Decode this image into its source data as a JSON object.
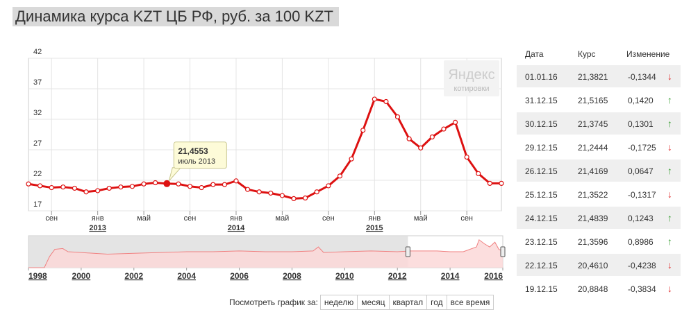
{
  "title": "Динамика курса KZT ЦБ РФ, руб. за 100 KZT",
  "watermark": {
    "line1": "Яндекс",
    "line2": "котировки"
  },
  "tooltip": {
    "value": "21,4553",
    "label": "июль 2013",
    "index": 12
  },
  "chart_data": {
    "type": "line",
    "title": "Динамика курса KZT ЦБ РФ, руб. за 100 KZT",
    "ylim": [
      17,
      42
    ],
    "yticks": [
      "42",
      "37",
      "32",
      "27",
      "22",
      "17"
    ],
    "ytick_values": [
      42,
      37,
      32,
      27,
      22,
      17
    ],
    "xlim": [
      0,
      41
    ],
    "x_month_labels": [
      {
        "x": 2,
        "label": "сен"
      },
      {
        "x": 6,
        "label": "янв"
      },
      {
        "x": 10,
        "label": "май"
      },
      {
        "x": 14,
        "label": "сен"
      },
      {
        "x": 18,
        "label": "янв"
      },
      {
        "x": 22,
        "label": "май"
      },
      {
        "x": 26,
        "label": "сен"
      },
      {
        "x": 30,
        "label": "янв"
      },
      {
        "x": 34,
        "label": "май"
      },
      {
        "x": 38,
        "label": "сен"
      }
    ],
    "x_year_labels": [
      {
        "x": 6,
        "label": "2013"
      },
      {
        "x": 18,
        "label": "2014"
      },
      {
        "x": 30,
        "label": "2015"
      }
    ],
    "values": [
      21.4,
      21.1,
      20.8,
      20.9,
      20.7,
      20.1,
      20.3,
      20.7,
      20.9,
      21.0,
      21.4,
      21.6,
      21.4553,
      21.4,
      21.0,
      20.8,
      21.3,
      21.3,
      21.9,
      20.5,
      20.1,
      19.9,
      19.5,
      19.0,
      19.1,
      20.1,
      21.1,
      22.7,
      25.5,
      30.2,
      35.3,
      34.9,
      32.4,
      28.8,
      27.3,
      29.1,
      30.4,
      31.5,
      25.8,
      23.1,
      21.5,
      21.5
    ],
    "grid": true
  },
  "navigator": {
    "year_labels": [
      {
        "x": 1998,
        "label": "1998"
      },
      {
        "x": 2000,
        "label": "2000"
      },
      {
        "x": 2002,
        "label": "2002"
      },
      {
        "x": 2004,
        "label": "2004"
      },
      {
        "x": 2006,
        "label": "2006"
      },
      {
        "x": 2008,
        "label": "2008"
      },
      {
        "x": 2010,
        "label": "2010"
      },
      {
        "x": 2012,
        "label": "2012"
      },
      {
        "x": 2014,
        "label": "2014"
      },
      {
        "x": 2016,
        "label": "2016"
      }
    ],
    "window": [
      2012.4,
      2016
    ],
    "range": [
      1998,
      2016
    ],
    "series": [
      [
        1998.0,
        0
      ],
      [
        1998.6,
        0
      ],
      [
        1998.8,
        14
      ],
      [
        1999.0,
        23
      ],
      [
        1999.3,
        24
      ],
      [
        1999.5,
        20
      ],
      [
        2000,
        19
      ],
      [
        2001,
        17
      ],
      [
        2002,
        18
      ],
      [
        2003,
        19
      ],
      [
        2004,
        20
      ],
      [
        2005,
        20
      ],
      [
        2006,
        21
      ],
      [
        2007,
        20
      ],
      [
        2008,
        20
      ],
      [
        2008.8,
        21
      ],
      [
        2009.0,
        26
      ],
      [
        2009.2,
        19
      ],
      [
        2010,
        20
      ],
      [
        2011,
        21
      ],
      [
        2012,
        20
      ],
      [
        2012.5,
        21
      ],
      [
        2013,
        21
      ],
      [
        2013.5,
        21
      ],
      [
        2014,
        20
      ],
      [
        2014.5,
        20
      ],
      [
        2015,
        26
      ],
      [
        2015.1,
        35
      ],
      [
        2015.3,
        30
      ],
      [
        2015.5,
        26
      ],
      [
        2015.7,
        32
      ],
      [
        2015.85,
        23
      ],
      [
        2016,
        21
      ]
    ]
  },
  "table": {
    "headers": {
      "date": "Дата",
      "rate": "Курс",
      "change": "Изменение"
    },
    "rows": [
      {
        "date": "01.01.16",
        "rate": "21,3821",
        "change": "-0,1344",
        "dir": "down"
      },
      {
        "date": "31.12.15",
        "rate": "21,5165",
        "change": "0,1420",
        "dir": "up"
      },
      {
        "date": "30.12.15",
        "rate": "21,3745",
        "change": "0,1301",
        "dir": "up"
      },
      {
        "date": "29.12.15",
        "rate": "21,2444",
        "change": "-0,1725",
        "dir": "down"
      },
      {
        "date": "26.12.15",
        "rate": "21,4169",
        "change": "0,0647",
        "dir": "up"
      },
      {
        "date": "25.12.15",
        "rate": "21,3522",
        "change": "-0,1317",
        "dir": "down"
      },
      {
        "date": "24.12.15",
        "rate": "21,4839",
        "change": "0,1243",
        "dir": "up"
      },
      {
        "date": "23.12.15",
        "rate": "21,3596",
        "change": "0,8986",
        "dir": "up"
      },
      {
        "date": "22.12.15",
        "rate": "20,4610",
        "change": "-0,4238",
        "dir": "down"
      },
      {
        "date": "19.12.15",
        "rate": "20,8848",
        "change": "-0,3834",
        "dir": "down"
      }
    ],
    "arrows": {
      "up": "↑",
      "down": "↓"
    }
  },
  "periods": {
    "label": "Посмотреть график за:",
    "buttons": [
      "неделю",
      "месяц",
      "квартал",
      "год",
      "все время"
    ]
  },
  "colors": {
    "line": "#dd1111",
    "grid": "#e4e4e4",
    "nav_fill": "#fbd8d8",
    "nav_line": "#f08080",
    "nav_window": "#dddddd"
  }
}
